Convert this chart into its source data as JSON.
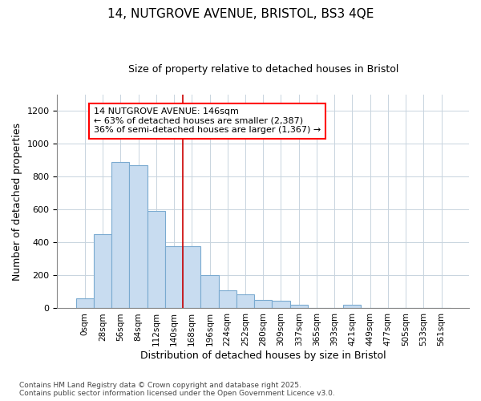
{
  "title_line1": "14, NUTGROVE AVENUE, BRISTOL, BS3 4QE",
  "title_line2": "Size of property relative to detached houses in Bristol",
  "xlabel": "Distribution of detached houses by size in Bristol",
  "ylabel": "Number of detached properties",
  "bar_labels": [
    "0sqm",
    "28sqm",
    "56sqm",
    "84sqm",
    "112sqm",
    "140sqm",
    "168sqm",
    "196sqm",
    "224sqm",
    "252sqm",
    "280sqm",
    "309sqm",
    "337sqm",
    "365sqm",
    "393sqm",
    "421sqm",
    "449sqm",
    "477sqm",
    "505sqm",
    "533sqm",
    "561sqm"
  ],
  "bar_values": [
    60,
    450,
    890,
    870,
    590,
    380,
    380,
    200,
    110,
    85,
    50,
    45,
    20,
    0,
    0,
    20,
    0,
    0,
    0,
    0,
    0
  ],
  "bar_color": "#c8dcf0",
  "bar_edge_color": "#7aaad0",
  "grid_color": "#c8d4de",
  "background_color": "#ffffff",
  "plot_bg_color": "#ffffff",
  "vline_x_index": 5,
  "vline_color": "#cc0000",
  "annotation_text": "14 NUTGROVE AVENUE: 146sqm\n← 63% of detached houses are smaller (2,387)\n36% of semi-detached houses are larger (1,367) →",
  "ylim": [
    0,
    1300
  ],
  "yticks": [
    0,
    200,
    400,
    600,
    800,
    1000,
    1200
  ],
  "footer_line1": "Contains HM Land Registry data © Crown copyright and database right 2025.",
  "footer_line2": "Contains public sector information licensed under the Open Government Licence v3.0."
}
